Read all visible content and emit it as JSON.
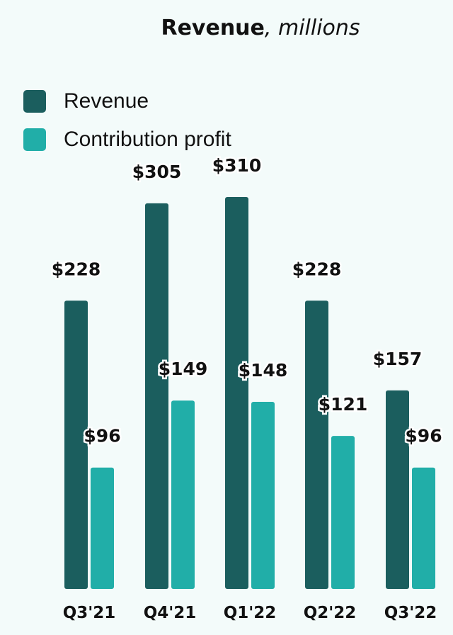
{
  "chart_data": {
    "type": "bar",
    "title": "Revenue",
    "subtitle": "millions",
    "categories": [
      "Q3'21",
      "Q4'21",
      "Q1'22",
      "Q2'22",
      "Q3'22"
    ],
    "series": [
      {
        "name": "Revenue",
        "color": "#1b5e5e",
        "values": [
          228,
          305,
          310,
          228,
          157
        ],
        "labels": [
          "$228",
          "$305",
          "$310",
          "$228",
          "$157"
        ]
      },
      {
        "name": "Contribution profit",
        "color": "#21aea8",
        "values": [
          96,
          149,
          148,
          121,
          96
        ],
        "labels": [
          "$96",
          "$149",
          "$148",
          "$121",
          "$96"
        ]
      }
    ],
    "ylim": [
      0,
      310
    ],
    "grid": false,
    "legend": "top-left"
  }
}
